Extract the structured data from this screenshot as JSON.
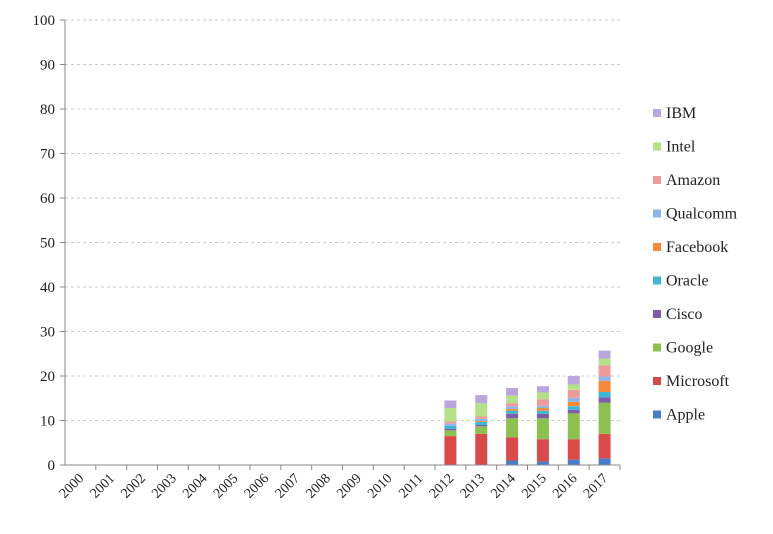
{
  "chart_data": {
    "type": "bar",
    "stacked": true,
    "title": "",
    "xlabel": "",
    "ylabel": "",
    "ylim": [
      0,
      100
    ],
    "yticks": [
      0,
      10,
      20,
      30,
      40,
      50,
      60,
      70,
      80,
      90,
      100
    ],
    "grid": true,
    "legend_position": "right",
    "categories": [
      "2000",
      "2001",
      "2002",
      "2003",
      "2004",
      "2005",
      "2006",
      "2007",
      "2008",
      "2009",
      "2010",
      "2011",
      "2012",
      "2013",
      "2014",
      "2015",
      "2016",
      "2017"
    ],
    "series": [
      {
        "name": "Apple",
        "color": "#4a7cc7",
        "values": [
          0,
          0,
          0,
          0,
          0,
          0,
          0,
          0,
          0,
          0,
          0,
          0,
          0.1,
          0.1,
          1.0,
          0.8,
          1.2,
          1.5
        ]
      },
      {
        "name": "Microsoft",
        "color": "#d94b4b",
        "values": [
          0,
          0,
          0,
          0,
          0,
          0,
          0,
          0,
          0,
          0,
          0,
          0,
          6.4,
          6.9,
          5.2,
          5.0,
          4.6,
          5.5
        ]
      },
      {
        "name": "Google",
        "color": "#8cc152",
        "values": [
          0,
          0,
          0,
          0,
          0,
          0,
          0,
          0,
          0,
          0,
          0,
          0,
          1.3,
          1.7,
          4.3,
          4.7,
          5.8,
          7.0
        ]
      },
      {
        "name": "Cisco",
        "color": "#7b5ea7",
        "values": [
          0,
          0,
          0,
          0,
          0,
          0,
          0,
          0,
          0,
          0,
          0,
          0,
          0.3,
          0.3,
          1.0,
          1.0,
          0.8,
          1.2
        ]
      },
      {
        "name": "Oracle",
        "color": "#3fb6d3",
        "values": [
          0,
          0,
          0,
          0,
          0,
          0,
          0,
          0,
          0,
          0,
          0,
          0,
          0.7,
          0.7,
          0.7,
          0.7,
          0.8,
          1.2
        ]
      },
      {
        "name": "Facebook",
        "color": "#f58a3a",
        "values": [
          0,
          0,
          0,
          0,
          0,
          0,
          0,
          0,
          0,
          0,
          0,
          0,
          0,
          0.2,
          0.4,
          0.6,
          1.0,
          2.5
        ]
      },
      {
        "name": "Qualcomm",
        "color": "#8eb4e8",
        "values": [
          0,
          0,
          0,
          0,
          0,
          0,
          0,
          0,
          0,
          0,
          0,
          0,
          0.5,
          0.5,
          0.6,
          0.5,
          0.9,
          1.0
        ]
      },
      {
        "name": "Amazon",
        "color": "#ec9a9a",
        "values": [
          0,
          0,
          0,
          0,
          0,
          0,
          0,
          0,
          0,
          0,
          0,
          0,
          0.5,
          0.5,
          0.7,
          1.5,
          1.8,
          2.5
        ]
      },
      {
        "name": "Intel",
        "color": "#b5e08a",
        "values": [
          0,
          0,
          0,
          0,
          0,
          0,
          0,
          0,
          0,
          0,
          0,
          0,
          3.0,
          3.0,
          1.7,
          1.5,
          1.2,
          1.5
        ]
      },
      {
        "name": "IBM",
        "color": "#b9a6dc",
        "values": [
          0,
          0,
          0,
          0,
          0,
          0,
          0,
          0,
          0,
          0,
          0,
          0,
          1.7,
          1.8,
          1.7,
          1.4,
          1.9,
          1.8
        ]
      }
    ]
  }
}
